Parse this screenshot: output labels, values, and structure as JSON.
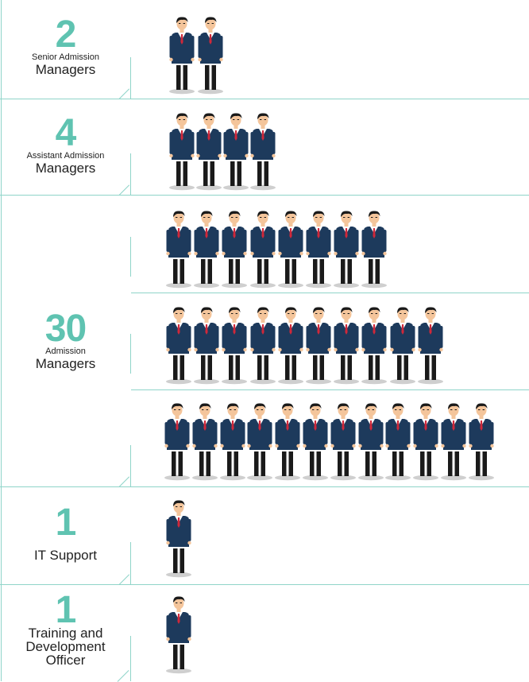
{
  "groups": [
    {
      "count": "2",
      "caption_small": "Senior Admission",
      "caption_large": "Managers",
      "people": 2
    },
    {
      "count": "4",
      "caption_small": "Assistant Admission",
      "caption_large": "Managers",
      "people": 4
    },
    {
      "count": "30",
      "caption_small": "Admission",
      "caption_large": "Managers",
      "people": 30
    },
    {
      "count": "1",
      "caption_small": "",
      "caption_large": "IT Support",
      "people": 1
    },
    {
      "count": "1",
      "caption_small": "",
      "caption_large": "Training and Development Officer",
      "people": 1
    }
  ],
  "colors": {
    "accent": "#5fc3b1",
    "line": "#8fd4c9",
    "suit": "#1d3a5c",
    "tie": "#d0283a",
    "skin": "#f4c59b",
    "hair": "#1a1a1a",
    "shadow": "#cfcfcf"
  },
  "icon": "businessman-icon"
}
